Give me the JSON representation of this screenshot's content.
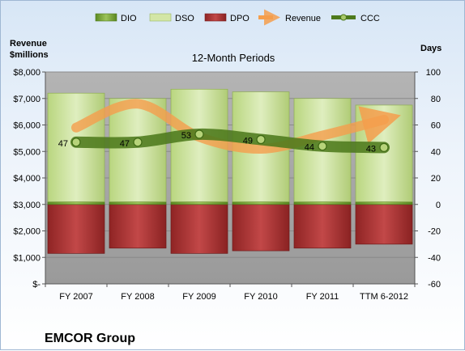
{
  "chart_data": {
    "type": "bar",
    "title": "12-Month Periods",
    "company": "EMCOR Group",
    "y_left_label": [
      "Revenue",
      "$millions"
    ],
    "y_right_label": "Days",
    "categories": [
      "FY 2007",
      "FY 2008",
      "FY 2009",
      "FY 2010",
      "FY 2011",
      "TTM 6-2012"
    ],
    "y_left": {
      "range": [
        0,
        8000
      ],
      "ticks": [
        "$-",
        "$1,000",
        "$2,000",
        "$3,000",
        "$4,000",
        "$5,000",
        "$6,000",
        "$7,000",
        "$8,000"
      ]
    },
    "y_right": {
      "range": [
        -60,
        100
      ],
      "ticks": [
        "-60",
        "-40",
        "-20",
        "0",
        "20",
        "40",
        "60",
        "80",
        "100"
      ]
    },
    "grid": true,
    "legend_position": "top",
    "legend": [
      "DIO",
      "DSO",
      "DPO",
      "Revenue",
      "CCC"
    ],
    "series": [
      {
        "name": "DIO",
        "axis": "days",
        "values": [
          2,
          2,
          2,
          2,
          2,
          2
        ],
        "color": "#6e9a2e"
      },
      {
        "name": "DSO",
        "axis": "days",
        "values": [
          82,
          78,
          85,
          83,
          78,
          73
        ],
        "color": "#c6dc94"
      },
      {
        "name": "DPO",
        "axis": "days",
        "values": [
          -37,
          -33,
          -37,
          -35,
          -33,
          -30
        ],
        "color": "#b23a3a"
      },
      {
        "name": "Revenue",
        "axis": "revenue",
        "values": [
          5900,
          6800,
          5550,
          5100,
          5600,
          6200
        ],
        "color": "#f59e4c"
      },
      {
        "name": "CCC",
        "axis": "days",
        "values": [
          47,
          47,
          53,
          49,
          44,
          43
        ],
        "color": "#4d7a1c"
      }
    ],
    "ccc_labels": [
      "47",
      "47",
      "53",
      "49",
      "44",
      "43"
    ]
  }
}
